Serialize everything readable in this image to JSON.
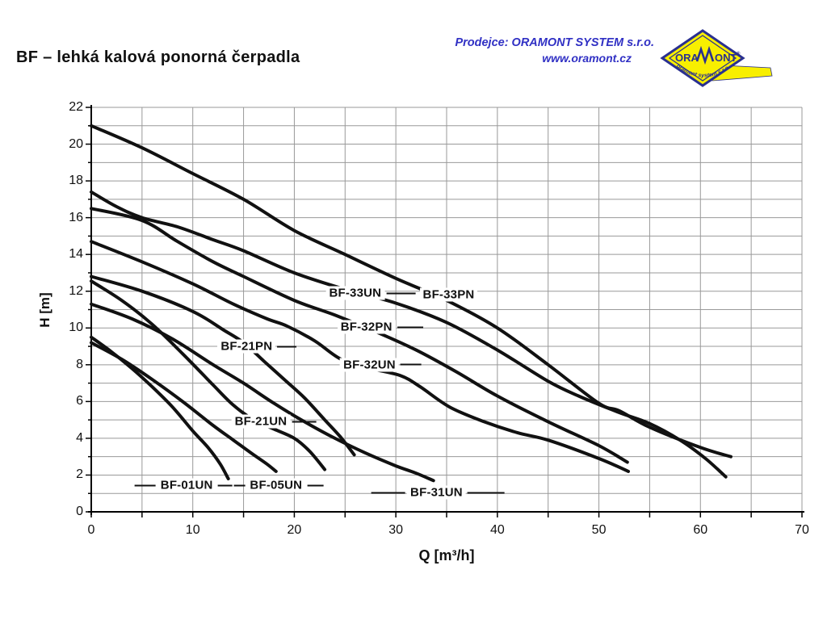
{
  "header": {
    "title": "BF – lehká kalová ponorná čerpadla",
    "vendor": {
      "line1": "Prodejce: ORAMONT SYSTEM s.r.o.",
      "line2": "www.oramont.cz",
      "color": "#3030c4"
    },
    "logo": {
      "brand_ora": "ORA",
      "brand_ont": "ONT",
      "registered": "®",
      "subtitle": "oramont  system s.r.o.",
      "yellow": "#f8ef00",
      "navy": "#2a3090"
    }
  },
  "chart_data": {
    "type": "line",
    "title": "",
    "xlabel": "Q [m³/h]",
    "ylabel": "H [m]",
    "xlim": [
      0,
      70
    ],
    "ylim": [
      0,
      22
    ],
    "x_tick_labels": [
      0,
      10,
      20,
      30,
      40,
      50,
      60,
      70
    ],
    "x_minor_step": 5,
    "y_tick_labels": [
      0,
      2,
      4,
      6,
      8,
      10,
      12,
      14,
      16,
      18,
      20,
      22
    ],
    "y_minor_step": 1,
    "grid": "on",
    "legend_position": "inline-labels",
    "grid_color": "#999999",
    "axis_color": "#000000",
    "curve_color": "#111111",
    "series": [
      {
        "name": "BF-33PN",
        "points": [
          [
            0,
            21
          ],
          [
            5,
            19.8
          ],
          [
            10,
            18.4
          ],
          [
            15,
            17.0
          ],
          [
            20,
            15.3
          ],
          [
            25,
            14.0
          ],
          [
            30,
            12.7
          ],
          [
            35,
            11.5
          ],
          [
            40,
            10.0
          ],
          [
            45,
            8.0
          ],
          [
            50,
            5.9
          ],
          [
            52,
            5.5
          ],
          [
            55,
            4.6
          ],
          [
            60,
            3.5
          ],
          [
            63,
            3.0
          ]
        ]
      },
      {
        "name": "BF-33UN",
        "points": [
          [
            0,
            17.4
          ],
          [
            2.5,
            16.6
          ],
          [
            5,
            16.0
          ],
          [
            8.5,
            15.5
          ],
          [
            12,
            14.8
          ],
          [
            15,
            14.2
          ],
          [
            20,
            13.0
          ],
          [
            25,
            12.1
          ],
          [
            30,
            11.35
          ],
          [
            35,
            10.3
          ],
          [
            40,
            8.8
          ],
          [
            45,
            7.1
          ],
          [
            48,
            6.3
          ],
          [
            52,
            5.4
          ],
          [
            55,
            4.8
          ],
          [
            58,
            3.9
          ],
          [
            60.5,
            2.9
          ],
          [
            62.5,
            1.9
          ]
        ]
      },
      {
        "name": "BF-32PN",
        "points": [
          [
            0,
            16.5
          ],
          [
            5,
            15.85
          ],
          [
            8.5,
            14.7
          ],
          [
            12,
            13.6
          ],
          [
            15,
            12.8
          ],
          [
            20,
            11.5
          ],
          [
            24,
            10.7
          ],
          [
            28,
            9.8
          ],
          [
            32,
            8.8
          ],
          [
            36,
            7.6
          ],
          [
            40,
            6.3
          ],
          [
            45,
            4.9
          ],
          [
            50,
            3.6
          ],
          [
            52.8,
            2.7
          ]
        ]
      },
      {
        "name": "BF-32UN",
        "points": [
          [
            0,
            14.7
          ],
          [
            5,
            13.6
          ],
          [
            10,
            12.4
          ],
          [
            14,
            11.3
          ],
          [
            17.3,
            10.5
          ],
          [
            19.3,
            10.1
          ],
          [
            22,
            9.3
          ],
          [
            24.6,
            8.3
          ],
          [
            27.5,
            7.8
          ],
          [
            30.5,
            7.4
          ],
          [
            32.4,
            6.8
          ],
          [
            35.3,
            5.7
          ],
          [
            38.7,
            4.9
          ],
          [
            42,
            4.3
          ],
          [
            45,
            3.9
          ],
          [
            50,
            2.9
          ],
          [
            52.9,
            2.2
          ]
        ]
      },
      {
        "name": "BF-21PN",
        "points": [
          [
            0,
            12.8
          ],
          [
            5,
            12.0
          ],
          [
            10,
            10.9
          ],
          [
            13,
            9.9
          ],
          [
            15,
            9.2
          ],
          [
            17,
            8.2
          ],
          [
            19,
            7.2
          ],
          [
            21,
            6.2
          ],
          [
            23,
            5.0
          ],
          [
            24.5,
            4.1
          ],
          [
            25.9,
            3.1
          ]
        ]
      },
      {
        "name": "BF-21UN",
        "points": [
          [
            0,
            12.55
          ],
          [
            3,
            11.5
          ],
          [
            6,
            10.2
          ],
          [
            9,
            8.6
          ],
          [
            12,
            6.9
          ],
          [
            14,
            5.8
          ],
          [
            16,
            5.0
          ],
          [
            18,
            4.5
          ],
          [
            20,
            4.0
          ],
          [
            21.5,
            3.3
          ],
          [
            23,
            2.3
          ]
        ]
      },
      {
        "name": "BF-31UN",
        "points": [
          [
            0,
            11.3
          ],
          [
            4,
            10.5
          ],
          [
            8,
            9.4
          ],
          [
            12,
            8.0
          ],
          [
            15,
            7.0
          ],
          [
            18,
            5.9
          ],
          [
            21,
            4.9
          ],
          [
            24,
            4.0
          ],
          [
            27,
            3.2
          ],
          [
            30,
            2.5
          ],
          [
            32,
            2.1
          ],
          [
            33.7,
            1.7
          ]
        ]
      },
      {
        "name": "BF-01UN",
        "points": [
          [
            0,
            9.5
          ],
          [
            2,
            8.7
          ],
          [
            4,
            7.8
          ],
          [
            6,
            6.8
          ],
          [
            8,
            5.7
          ],
          [
            10,
            4.4
          ],
          [
            11.5,
            3.5
          ],
          [
            12.7,
            2.6
          ],
          [
            13.5,
            1.8
          ]
        ]
      },
      {
        "name": "BF-05UN",
        "points": [
          [
            0,
            9.2
          ],
          [
            3,
            8.3
          ],
          [
            6,
            7.2
          ],
          [
            9,
            6.0
          ],
          [
            12,
            4.7
          ],
          [
            14,
            3.9
          ],
          [
            16,
            3.1
          ],
          [
            17.3,
            2.6
          ],
          [
            18.2,
            2.2
          ]
        ]
      }
    ],
    "curve_labels": [
      {
        "text": "BF-33UN",
        "q": 26.0,
        "h": 11.9,
        "dash_right": 36
      },
      {
        "text": "BF-33PN",
        "q": 35.2,
        "h": 11.8
      },
      {
        "text": "BF-32PN",
        "q": 27.1,
        "h": 10.05,
        "dash_right": 32
      },
      {
        "text": "BF-32UN",
        "q": 27.4,
        "h": 8.0,
        "dash_right": 26
      },
      {
        "text": "BF-21PN",
        "q": 15.3,
        "h": 9.0,
        "dash_right": 24
      },
      {
        "text": "BF-21UN",
        "q": 16.7,
        "h": 4.9,
        "dash_right": 30
      },
      {
        "text": "BF-01UN",
        "q": 9.4,
        "h": 1.43,
        "dash_left": 26,
        "dash_right": 18
      },
      {
        "text": "BF-05UN",
        "q": 18.2,
        "h": 1.43,
        "dash_left": 14,
        "dash_right": 20
      },
      {
        "text": "BF-31UN",
        "q": 34.0,
        "h": 1.05,
        "dash_left": 42,
        "dash_right": 46
      }
    ]
  }
}
